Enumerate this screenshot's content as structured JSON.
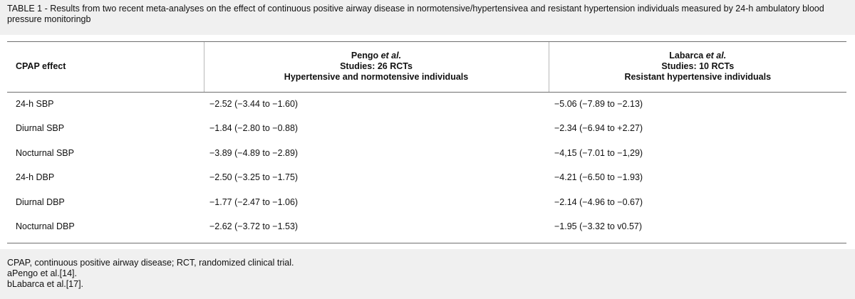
{
  "caption": "TABLE 1 - Results from two recent meta-analyses on the effect of continuous positive airway disease in normotensive/hypertensivea and resistant hypertension individuals measured by 24-h ambulatory blood pressure monitoringb",
  "table": {
    "header": {
      "col1": "CPAP effect",
      "col2": {
        "author_name": "Pengo ",
        "author_etal": "et al.",
        "studies": "Studies: 26 RCTs",
        "population": "Hypertensive and normotensive individuals"
      },
      "col3": {
        "author_name": "Labarca ",
        "author_etal": "et al.",
        "studies": "Studies: 10 RCTs",
        "population": "Resistant hypertensive individuals"
      }
    },
    "rows": [
      {
        "effect": "24-h SBP",
        "pengo": "−2.52 (−3.44 to −1.60)",
        "labarca": "−5.06 (−7.89 to −2.13)"
      },
      {
        "effect": "Diurnal SBP",
        "pengo": "−1.84 (−2.80 to −0.88)",
        "labarca": "−2.34 (−6.94 to +2.27)"
      },
      {
        "effect": "Nocturnal SBP",
        "pengo": "−3.89 (−4.89 to −2.89)",
        "labarca": "−4,15 (−7.01 to −1,29)"
      },
      {
        "effect": "24-h DBP",
        "pengo": "−2.50 (−3.25 to −1.75)",
        "labarca": "−4.21 (−6.50 to −1.93)"
      },
      {
        "effect": "Diurnal DBP",
        "pengo": "−1.77 (−2.47 to −1.06)",
        "labarca": "−2.14 (−4.96 to −0.67)"
      },
      {
        "effect": "Nocturnal DBP",
        "pengo": "−2.62 (−3.72 to −1.53)",
        "labarca": "−1.95 (−3.32 to v0.57)"
      }
    ]
  },
  "footnotes": {
    "abbreviations": "CPAP, continuous positive airway disease; RCT, randomized clinical trial.",
    "note_a": "aPengo et al.[14].",
    "note_b": "bLabarca et al.[17]."
  }
}
